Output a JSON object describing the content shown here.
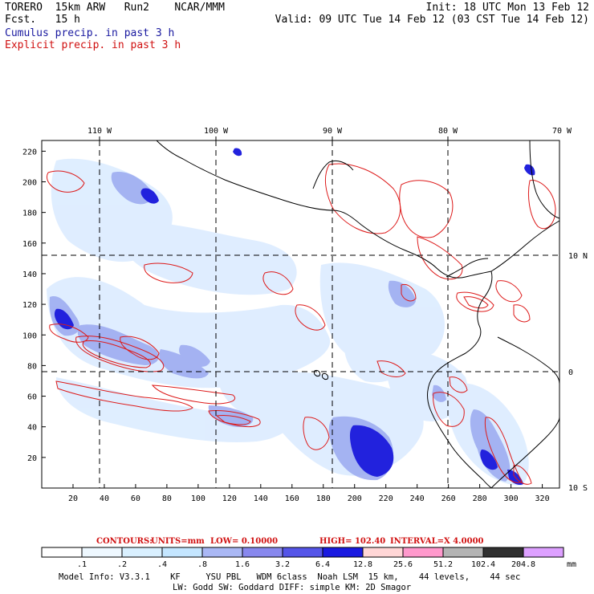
{
  "header": {
    "left_line1": "TORERO  15km ARW   Run2    NCAR/MMM",
    "left_line2": "Fcst.   15 h",
    "right_line1": "Init: 18 UTC Mon 13 Feb 12",
    "right_line2": "Valid: 09 UTC Tue 14 Feb 12 (03 CST Tue 14 Feb 12)",
    "field1": "Cumulus precip. in past 3 h",
    "field2": "Explicit precip. in past 3 h"
  },
  "axes": {
    "top_lon_labels": [
      "110 W",
      "100 W",
      "90 W",
      "80 W",
      "70 W"
    ],
    "right_lat_labels": [
      "10 N",
      "0",
      "10 S"
    ],
    "left_y_ticks": [
      "220",
      "200",
      "180",
      "160",
      "140",
      "120",
      "100",
      "80",
      "60",
      "40",
      "20"
    ],
    "bottom_x_ticks": [
      "20",
      "40",
      "60",
      "80",
      "100",
      "120",
      "140",
      "160",
      "180",
      "200",
      "220",
      "240",
      "260",
      "280",
      "300",
      "320"
    ]
  },
  "contour_info": {
    "label": "CONTOURS:",
    "units": "UNITS=mm",
    "low": "LOW= 0.10000",
    "high": "HIGH=  102.40",
    "interval": "INTERVAL=X  4.0000"
  },
  "colorbar": {
    "colors": [
      "#ffffff",
      "#eef8ff",
      "#d9f0ff",
      "#c4e6ff",
      "#aab8f5",
      "#8888ee",
      "#5555e8",
      "#1a1ae0",
      "#ffd6d6",
      "#ff99cc",
      "#b4b4b4",
      "#303030",
      "#dda0ff"
    ],
    "labels": [
      ".1",
      ".2",
      ".4",
      ".8",
      "1.6",
      "3.2",
      "6.4",
      "12.8",
      "25.6",
      "51.2",
      "102.4",
      "204.8"
    ],
    "unit": "mm"
  },
  "model_info": {
    "line1": "Model Info: V3.3.1    KF     YSU PBL   WDM 6class  Noah LSM  15 km,    44 levels,    44 sec",
    "line2": "LW: Godd SW: Goddard DIFF: simple KM: 2D Smagor"
  }
}
